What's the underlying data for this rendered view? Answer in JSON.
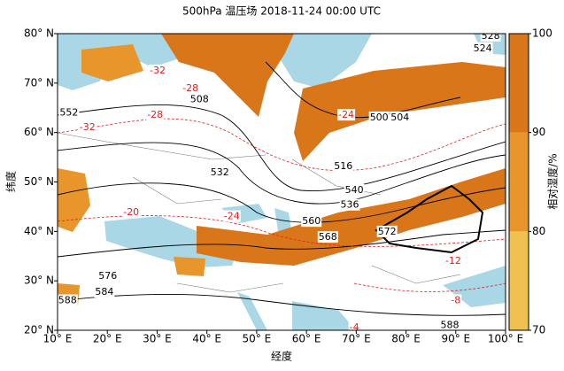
{
  "chart_data": {
    "type": "map",
    "title": "500hPa 温压场 2018-11-24 00:00 UTC",
    "x_label": "经度",
    "y_label": "纬度",
    "xlim": [
      10,
      100
    ],
    "ylim": [
      20,
      80
    ],
    "xticks": [
      {
        "value": 10,
        "label": "10° E"
      },
      {
        "value": 20,
        "label": "20° E"
      },
      {
        "value": 30,
        "label": "30° E"
      },
      {
        "value": 40,
        "label": "40° E"
      },
      {
        "value": 50,
        "label": "50° E"
      },
      {
        "value": 60,
        "label": "60° E"
      },
      {
        "value": 70,
        "label": "70° E"
      },
      {
        "value": 80,
        "label": "80° E"
      },
      {
        "value": 90,
        "label": "90° E"
      },
      {
        "value": 100,
        "label": "100° E"
      }
    ],
    "yticks": [
      {
        "value": 20,
        "label": "20° N"
      },
      {
        "value": 30,
        "label": "30° N"
      },
      {
        "value": 40,
        "label": "40° N"
      },
      {
        "value": 50,
        "label": "50° N"
      },
      {
        "value": 60,
        "label": "60° N"
      },
      {
        "value": 70,
        "label": "70° N"
      },
      {
        "value": 80,
        "label": "80° N"
      }
    ],
    "colorbar": {
      "label": "相对湿度/%",
      "levels": [
        70,
        80,
        90,
        100
      ],
      "colors": [
        "#f0c150",
        "#e8952c",
        "#d9761a"
      ]
    },
    "height_labels": {
      "color": "#000000",
      "values": [
        528,
        524,
        508,
        500,
        504,
        552,
        532,
        516,
        540,
        536,
        560,
        568,
        572,
        576,
        584,
        588,
        588
      ],
      "lon": [
        97,
        95.4,
        38.5,
        74.6,
        78.8,
        12.3,
        42.6,
        67.4,
        69.6,
        68.7,
        61,
        64.3,
        76.2,
        20.1,
        19.4,
        12,
        88.8
      ],
      "lat": [
        79.5,
        77,
        66.7,
        63,
        63,
        64,
        51.9,
        53.1,
        48.3,
        45.3,
        42,
        38.8,
        39.9,
        30.9,
        27.7,
        26,
        21
      ]
    },
    "temperature_labels": {
      "color": "#e02020",
      "values": [
        -32,
        -28,
        -24,
        -20,
        -24,
        -12,
        -8,
        -4,
        -28,
        -32
      ],
      "lon": [
        30.1,
        36.7,
        68,
        24.8,
        45,
        89.5,
        90,
        69.6,
        29.6,
        16
      ],
      "lat": [
        72.5,
        68.9,
        63.5,
        43.8,
        43,
        34,
        26,
        20.5,
        63.5,
        61
      ]
    }
  }
}
